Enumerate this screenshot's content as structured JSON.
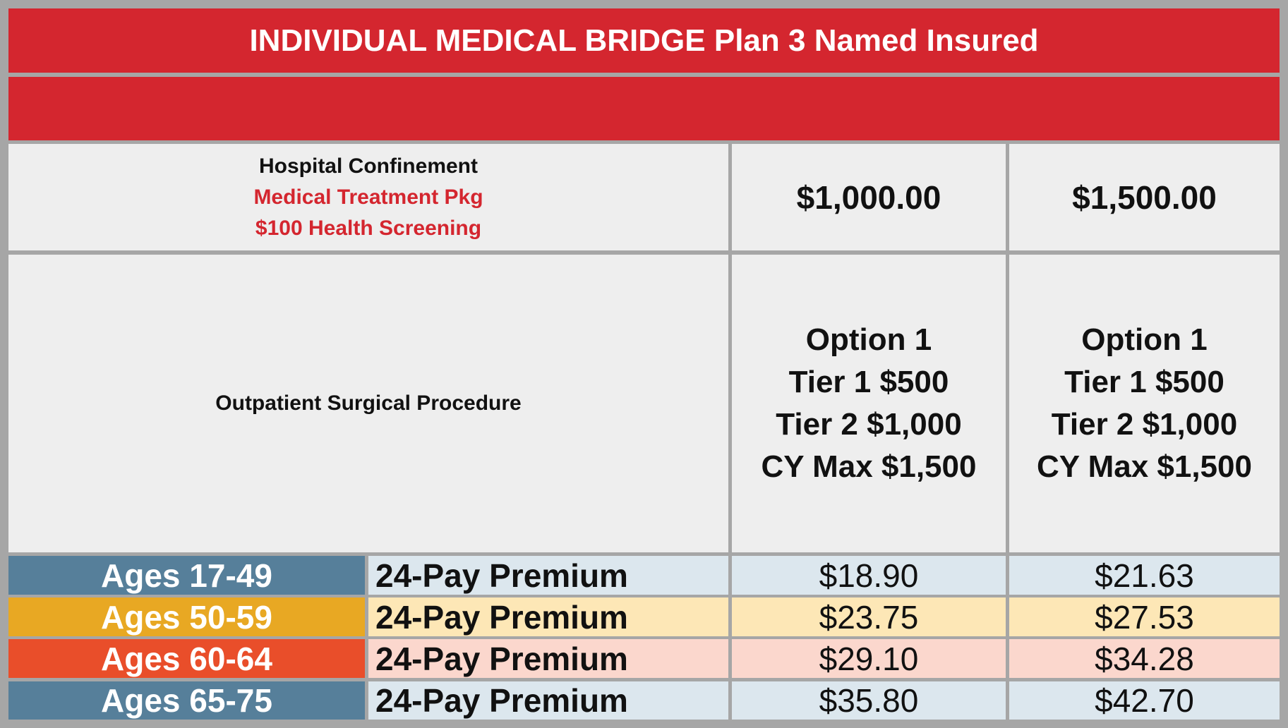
{
  "title": "INDIVIDUAL MEDICAL BRIDGE Plan 3 Named Insured",
  "benefits": {
    "line1": "Hospital Confinement",
    "line2": "Medical Treatment Pkg",
    "line3": "$100 Health Screening",
    "amount_1": "$1,000.00",
    "amount_2": "$1,500.00"
  },
  "outpatient": {
    "label": "Outpatient Surgical Procedure",
    "col1": [
      "Option 1",
      "Tier 1 $500",
      "Tier 2 $1,000",
      "CY Max $1,500"
    ],
    "col2": [
      "Option 1",
      "Tier 1 $500",
      "Tier 2 $1,000",
      "CY Max $1,500"
    ]
  },
  "premium_rows": [
    {
      "age": "Ages 17-49",
      "label": "24-Pay Premium",
      "price_1": "$18.90",
      "price_2": "$21.63"
    },
    {
      "age": "Ages 50-59",
      "label": "24-Pay Premium",
      "price_1": "$23.75",
      "price_2": "$27.53"
    },
    {
      "age": "Ages 60-64",
      "label": "24-Pay Premium",
      "price_1": "$29.10",
      "price_2": "$34.28"
    },
    {
      "age": "Ages 65-75",
      "label": "24-Pay Premium",
      "price_1": "$35.80",
      "price_2": "$42.70"
    }
  ],
  "colors": {
    "red": "#d4262f",
    "age_row_1": "#567f9a",
    "age_row_2": "#e8a823",
    "age_row_3": "#e94e2a",
    "age_row_4": "#567f9a",
    "tint_row_1": "#dce7ee",
    "tint_row_2": "#fde7b6",
    "tint_row_3": "#fbd7cd",
    "tint_row_4": "#dce7ee"
  }
}
